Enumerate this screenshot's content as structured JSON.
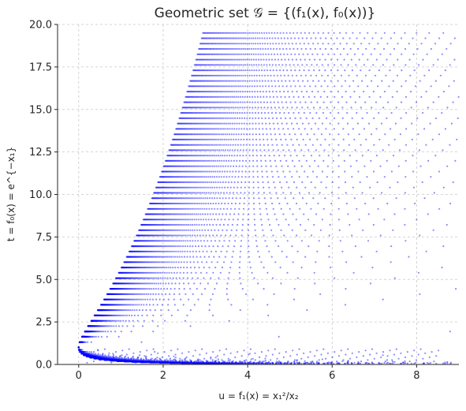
{
  "chart_data": {
    "type": "scatter",
    "title": "Geometric set 𝒢 = {(f₁(x), f₀(x))}",
    "xlabel": "u = f₁(x) = x₁²/x₂",
    "ylabel": "t = f₀(x) = e^{−x₁}",
    "xlim": [
      -0.5,
      9.0
    ],
    "ylim": [
      0,
      20
    ],
    "xticks": [
      0,
      2,
      4,
      6,
      8
    ],
    "xtick_labels": [
      "0",
      "2",
      "4",
      "6",
      "8"
    ],
    "yticks": [
      0.0,
      2.5,
      5.0,
      7.5,
      10.0,
      12.5,
      15.0,
      17.5,
      20.0
    ],
    "ytick_labels": [
      "0.0",
      "2.5",
      "5.0",
      "7.5",
      "10.0",
      "12.5",
      "15.0",
      "17.5",
      "20.0"
    ],
    "grid": true,
    "series": [
      {
        "color": "#0000ff",
        "sampling": {
          "x1_range": [
            -3.0,
            3.0
          ],
          "x2_range": [
            0.05,
            3.0
          ],
          "x1_rows_above": 60,
          "x1_rows_below": 20,
          "x2_columns": 90
        }
      }
    ]
  }
}
